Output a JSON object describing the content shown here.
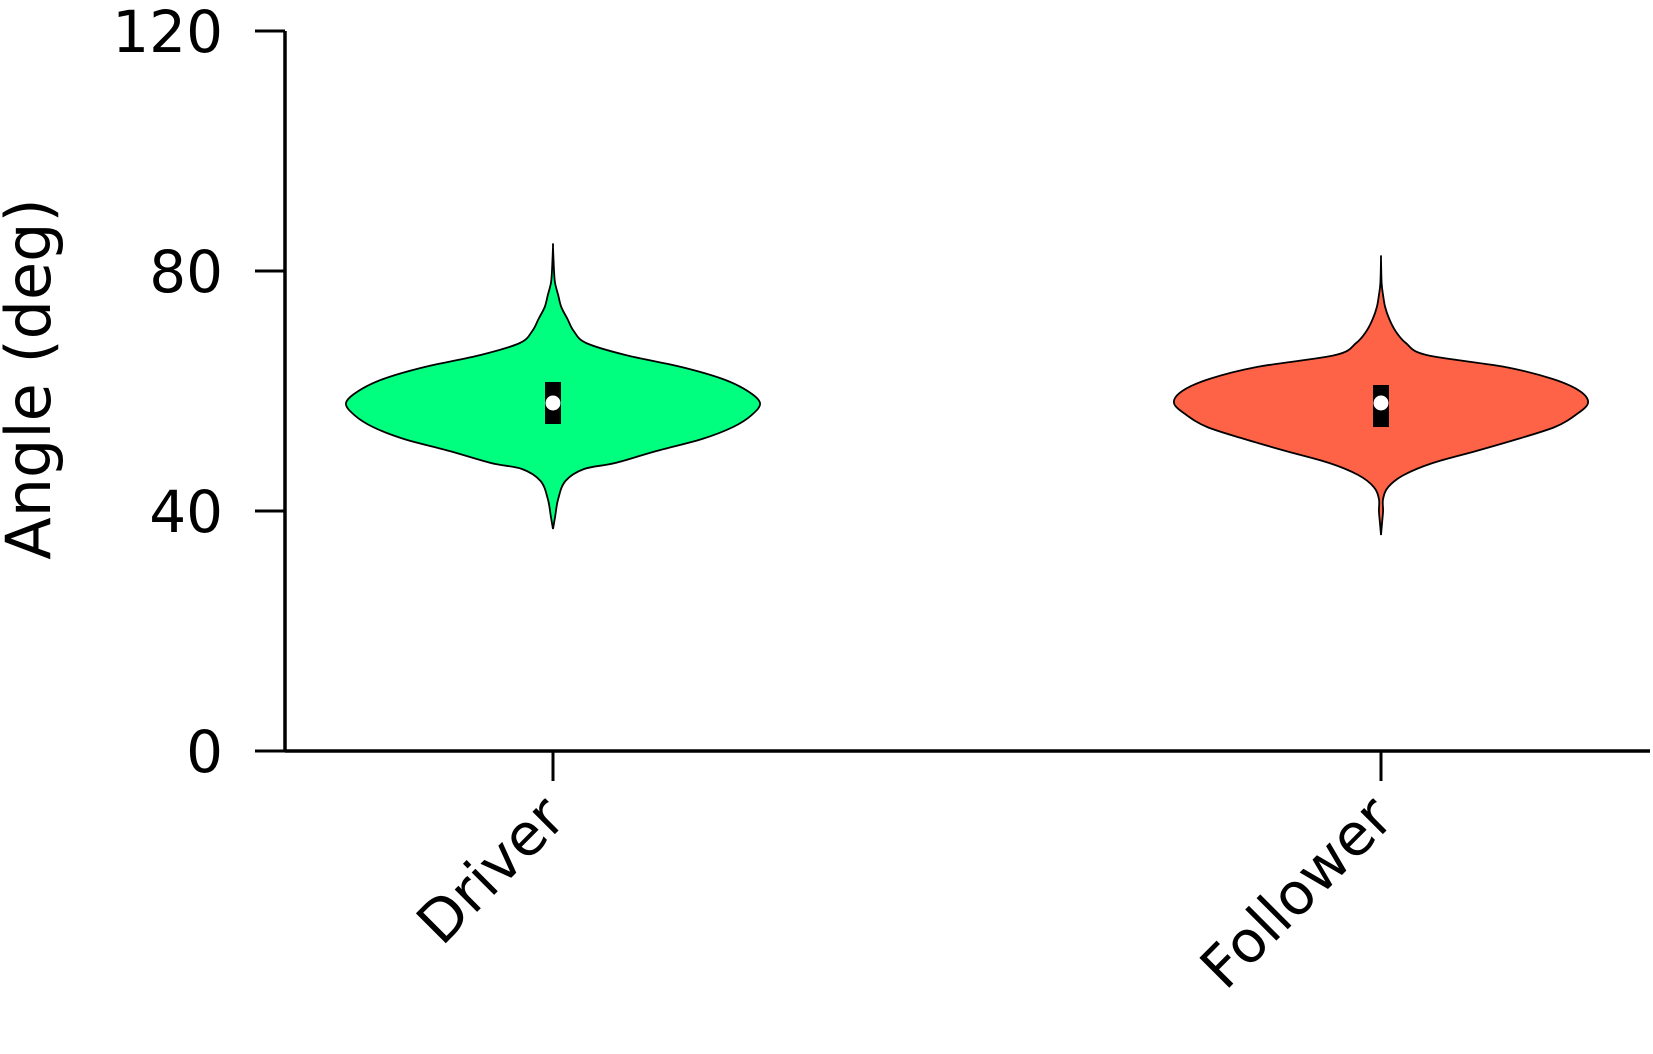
{
  "chart_data": {
    "type": "violin",
    "title": "",
    "xlabel": "",
    "ylabel": "Angle (deg)",
    "ylim": [
      0,
      120
    ],
    "yticks": [
      "0",
      "40",
      "80",
      "120"
    ],
    "categories": [
      "Driver",
      "Follower"
    ],
    "grid": false,
    "legend": "none",
    "series": [
      {
        "category": "Driver",
        "color": "#00ff7f",
        "median": 58,
        "q1": 54.5,
        "q3": 61.5,
        "min": 37,
        "max": 84,
        "density": [
          [
            37,
            0.0
          ],
          [
            39,
            0.01
          ],
          [
            42,
            0.025
          ],
          [
            45,
            0.06
          ],
          [
            47,
            0.15
          ],
          [
            48,
            0.3
          ],
          [
            50,
            0.5
          ],
          [
            52,
            0.72
          ],
          [
            54,
            0.87
          ],
          [
            56,
            0.96
          ],
          [
            58,
            1.0
          ],
          [
            60,
            0.94
          ],
          [
            62,
            0.82
          ],
          [
            64,
            0.62
          ],
          [
            66,
            0.35
          ],
          [
            68,
            0.16
          ],
          [
            70,
            0.1
          ],
          [
            72,
            0.07
          ],
          [
            74,
            0.04
          ],
          [
            76,
            0.025
          ],
          [
            78,
            0.01
          ],
          [
            80,
            0.005
          ],
          [
            84,
            0.0
          ]
        ]
      },
      {
        "category": "Follower",
        "color": "#ff6347",
        "median": 58,
        "q1": 54,
        "q3": 61,
        "min": 36,
        "max": 82,
        "density": [
          [
            36,
            0.0
          ],
          [
            38,
            0.005
          ],
          [
            40,
            0.01
          ],
          [
            42,
            0.01
          ],
          [
            44,
            0.035
          ],
          [
            46,
            0.11
          ],
          [
            48,
            0.25
          ],
          [
            50,
            0.46
          ],
          [
            52,
            0.66
          ],
          [
            54,
            0.84
          ],
          [
            56,
            0.94
          ],
          [
            58,
            1.0
          ],
          [
            60,
            0.96
          ],
          [
            62,
            0.83
          ],
          [
            64,
            0.6
          ],
          [
            66,
            0.22
          ],
          [
            68,
            0.12
          ],
          [
            70,
            0.07
          ],
          [
            72,
            0.04
          ],
          [
            74,
            0.02
          ],
          [
            76,
            0.01
          ],
          [
            78,
            0.003
          ],
          [
            82,
            0.0
          ]
        ]
      }
    ]
  }
}
